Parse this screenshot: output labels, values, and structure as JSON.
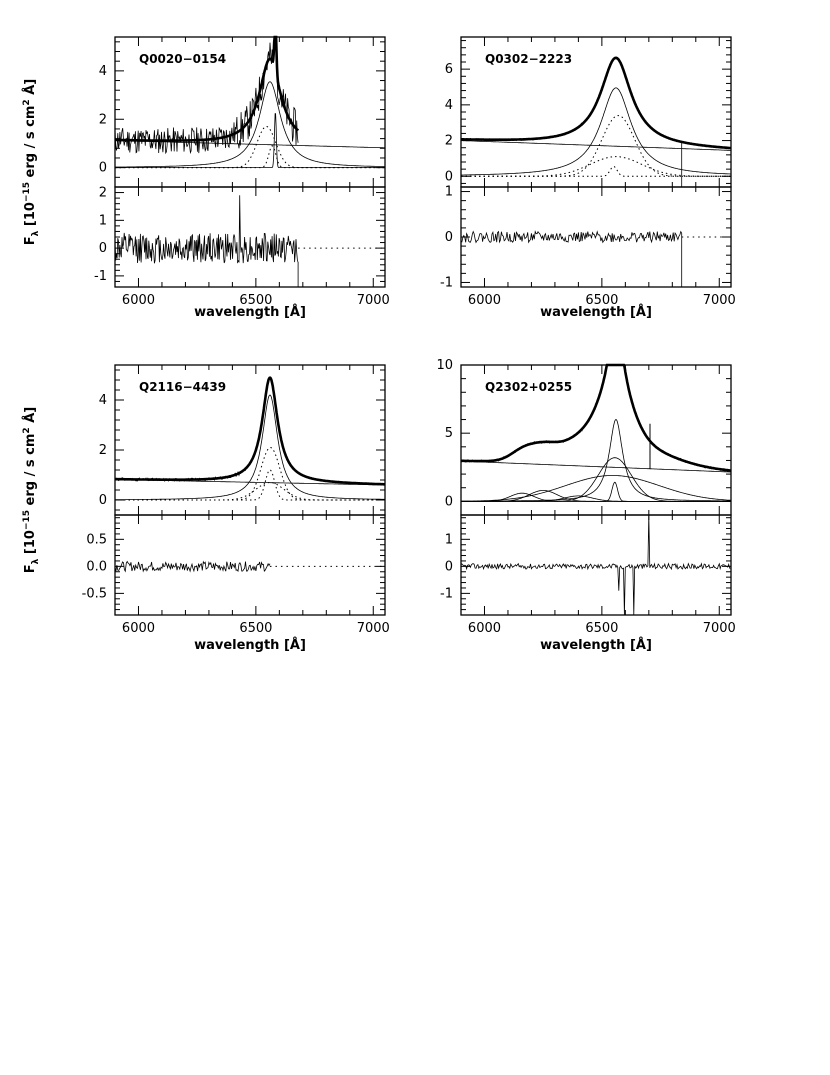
{
  "figure": {
    "ylabel_prefix": "F",
    "ylabel_sub": "λ",
    "ylabel_open": "  [10",
    "ylabel_exp": "−15",
    "ylabel_mid": " erg / s cm",
    "ylabel_sq": "2",
    "ylabel_end": " Å]",
    "xlabel": "wavelength  [Å]"
  },
  "chart_data": [
    {
      "id": "Q0020-0154",
      "name": "Q0020−0154",
      "type": "line",
      "xlim": [
        5900,
        7050
      ],
      "xticks": [
        6000,
        6500,
        7000
      ],
      "xlabel": "wavelength  [Å]",
      "top": {
        "ylim": [
          -0.8,
          5.4
        ],
        "yticks": [
          0,
          2,
          4
        ],
        "data_end": 6680,
        "continuum": {
          "a": 1.12,
          "slope": -0.3
        },
        "broad": {
          "center": 6560,
          "amp": 3.55,
          "gamma": 55
        },
        "narrow": {
          "center": 6583,
          "amp": 2.3,
          "sigma": 4
        },
        "dotted": [
          {
            "center": 6545,
            "amp": 1.7,
            "sigma": 40
          },
          {
            "center": 6570,
            "amp": 0.9,
            "sigma": 15
          }
        ],
        "noise": {
          "seed": 11,
          "amp": 0.55,
          "step": 3
        },
        "drop_at": null
      },
      "bottom": {
        "ylim": [
          -1.4,
          2.2
        ],
        "yticks": [
          -1,
          0,
          1,
          2
        ],
        "data_end": 6680,
        "noise": {
          "seed": 12,
          "amp": 0.55,
          "step": 3
        },
        "spikes": [
          {
            "x": 6430,
            "y": 1.9
          }
        ],
        "drop_at": 6680
      }
    },
    {
      "id": "Q0302-2223",
      "name": "Q0302−2223",
      "type": "line",
      "xlim": [
        5900,
        7050
      ],
      "xticks": [
        6000,
        6500,
        7000
      ],
      "xlabel": "wavelength  [Å]",
      "top": {
        "ylim": [
          -0.6,
          7.8
        ],
        "yticks": [
          0,
          2,
          4,
          6
        ],
        "data_end": 6840,
        "continuum": {
          "a": 2.0,
          "slope": -0.55
        },
        "broad": {
          "center": 6560,
          "amp": 4.95,
          "gamma": 80
        },
        "narrow": null,
        "dotted": [
          {
            "center": 6570,
            "amp": 3.4,
            "sigma": 70
          },
          {
            "center": 6560,
            "amp": 1.1,
            "sigma": 110
          },
          {
            "center": 6550,
            "amp": 0.55,
            "sigma": 15
          }
        ],
        "noise": {
          "seed": 21,
          "amp": 0.06,
          "step": 4
        },
        "drop_at": 6840
      },
      "bottom": {
        "ylim": [
          -1.1,
          1.1
        ],
        "yticks": [
          -1,
          0,
          1
        ],
        "data_end": 6840,
        "noise": {
          "seed": 22,
          "amp": 0.12,
          "step": 4
        },
        "spikes": [],
        "drop_at": 6840
      }
    },
    {
      "id": "Q2116-4439",
      "name": "Q2116−4439",
      "type": "line",
      "xlim": [
        5900,
        7050
      ],
      "xticks": [
        6000,
        6500,
        7000
      ],
      "xlabel": "wavelength  [Å]",
      "top": {
        "ylim": [
          -0.6,
          5.4
        ],
        "yticks": [
          0,
          2,
          4
        ],
        "data_end": 6590,
        "continuum": {
          "a": 0.82,
          "slope": -0.22
        },
        "broad": {
          "center": 6560,
          "amp": 4.2,
          "gamma": 40
        },
        "narrow": null,
        "dotted": [
          {
            "center": 6562,
            "amp": 2.1,
            "sigma": 40
          },
          {
            "center": 6560,
            "amp": 1.2,
            "sigma": 20
          },
          {
            "center": 6560,
            "amp": 0.7,
            "sigma": 60
          }
        ],
        "noise": {
          "seed": 31,
          "amp": 0.06,
          "step": 4
        },
        "drop_at": null
      },
      "bottom": {
        "ylim": [
          -0.9,
          0.95
        ],
        "yticks": [
          -0.5,
          0.0,
          0.5
        ],
        "data_end": 6560,
        "noise": {
          "seed": 32,
          "amp": 0.09,
          "step": 4
        },
        "spikes": [],
        "drop_at": null
      }
    },
    {
      "id": "Q2302+0255",
      "name": "Q2302+0255",
      "type": "line",
      "xlim": [
        5900,
        7050
      ],
      "xticks": [
        6000,
        6500,
        7000
      ],
      "xlabel": "wavelength  [Å]",
      "top": {
        "ylim": [
          -1.0,
          10.0
        ],
        "yticks": [
          0,
          5,
          10
        ],
        "data_end": 7050,
        "continuum": {
          "a": 2.95,
          "slope": -0.8
        },
        "broad": {
          "center": 6560,
          "amp": 6.0,
          "gamma": 35
        },
        "narrow": null,
        "dotted": [],
        "extra_solid": [
          {
            "center": 6555,
            "amp": 3.2,
            "sigma": 70
          },
          {
            "center": 6545,
            "amp": 1.9,
            "sigma": 200
          },
          {
            "center": 6555,
            "amp": 1.4,
            "sigma": 12
          },
          {
            "center": 6250,
            "amp": 0.8,
            "sigma": 60
          },
          {
            "center": 6160,
            "amp": 0.6,
            "sigma": 50
          },
          {
            "center": 6400,
            "amp": 0.4,
            "sigma": 60
          }
        ],
        "noise": {
          "seed": 41,
          "amp": 0.1,
          "step": 4
        },
        "peak_lines": [
          {
            "x": 6705,
            "y": 3.3
          }
        ],
        "drop_at": null
      },
      "bottom": {
        "ylim": [
          -1.8,
          1.9
        ],
        "yticks": [
          -1,
          0,
          1
        ],
        "data_end": 7050,
        "noise": {
          "seed": 42,
          "amp": 0.1,
          "step": 4
        },
        "spikes": [
          {
            "x": 6700,
            "y": 1.9
          },
          {
            "x": 6595,
            "y": -1.8
          },
          {
            "x": 6635,
            "y": -1.8
          },
          {
            "x": 6570,
            "y": -0.9
          }
        ],
        "drop_at": null
      }
    }
  ]
}
